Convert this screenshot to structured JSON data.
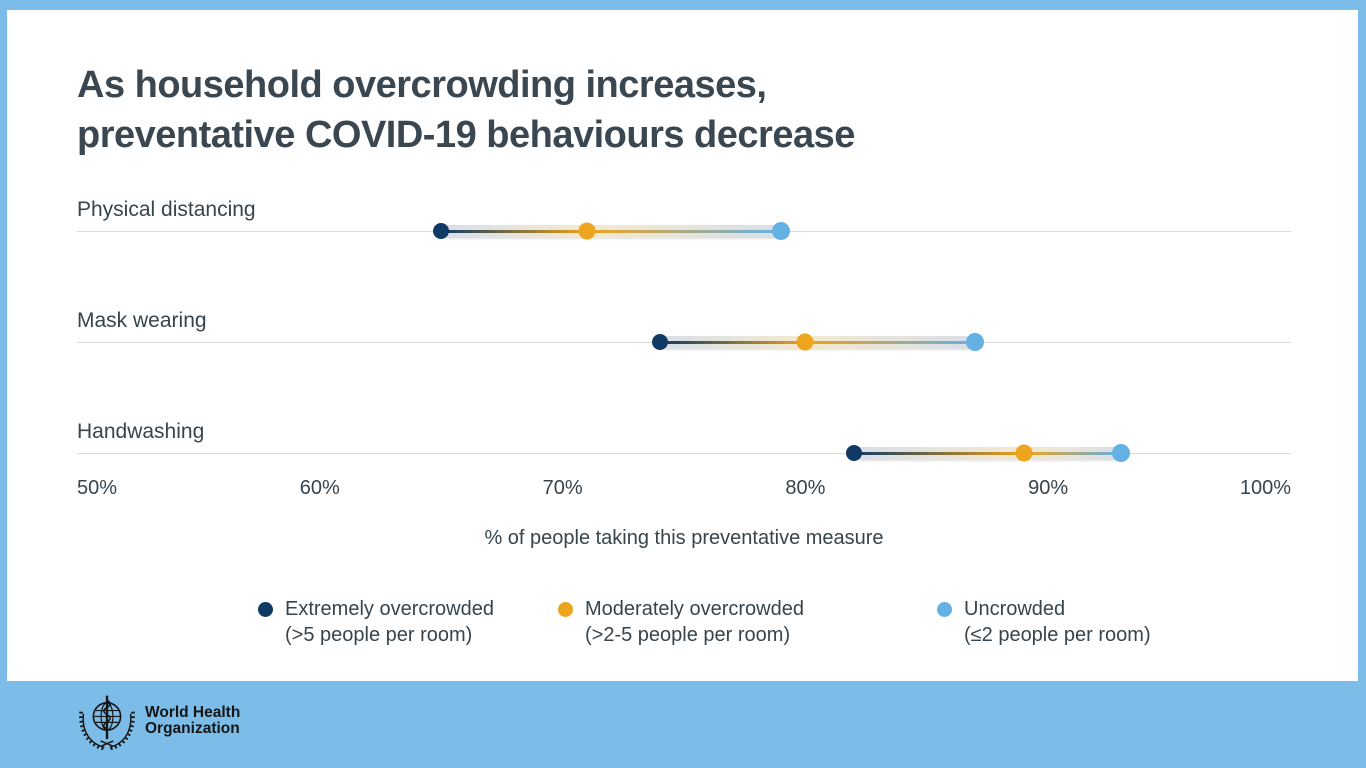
{
  "title": {
    "line1": "As household overcrowding increases,",
    "line2": "preventative COVID-19 behaviours decrease"
  },
  "chart_data": {
    "type": "dumbbell",
    "categories": [
      "Physical distancing",
      "Mask wearing",
      "Handwashing"
    ],
    "series": [
      {
        "name": "Extremely overcrowded (>5 people per room)",
        "color": "#103a63",
        "values": [
          65,
          74,
          82
        ]
      },
      {
        "name": "Moderately overcrowded (>2-5 people per room)",
        "color": "#eda41f",
        "values": [
          71,
          80,
          89
        ]
      },
      {
        "name": "Uncrowded (≤2 people per room)",
        "color": "#66b1e4",
        "values": [
          79,
          87,
          93
        ]
      }
    ],
    "xlabel": "% of people taking this preventative measure",
    "x_ticks": [
      "50%",
      "60%",
      "70%",
      "80%",
      "90%",
      "100%"
    ],
    "xlim": [
      50,
      100
    ],
    "grid": "horizontal category lines only",
    "legend_position": "bottom",
    "legend": [
      {
        "label": "Extremely overcrowded",
        "sublabel": "(>5 people per room)",
        "color": "#103a63"
      },
      {
        "label": "Moderately overcrowded",
        "sublabel": "(>2-5 people per room)",
        "color": "#eda41f"
      },
      {
        "label": "Uncrowded",
        "sublabel": "(≤2 people per room)",
        "color": "#66b1e4"
      }
    ],
    "ribbon_colors": {
      "steel": "#d8dee8",
      "pale_yellow": "#f3e9cf"
    }
  },
  "footer": {
    "org_line1": "World Health",
    "org_line2": "Organization"
  },
  "colors": {
    "frame_blue": "#7cbce8",
    "panel": "#ffffff",
    "text": "#37444d",
    "title_text": "#3b4750",
    "gridline": "#d9d9d9"
  }
}
